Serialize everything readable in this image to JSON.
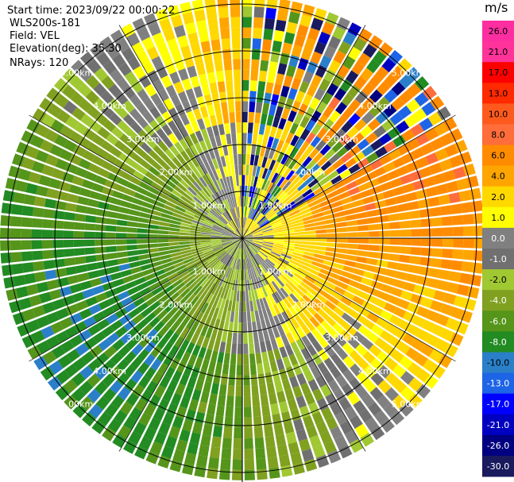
{
  "header": {
    "start_time": "Start time: 2023/09/22 00:00:22",
    "site": "WLS200s-181",
    "field": "Field: VEL",
    "elevation": "Elevation(deg): 35.30",
    "nrays": "NRays: 120"
  },
  "colorbar": {
    "unit": "m/s",
    "ticks": [
      "26.0",
      "21.0",
      "17.0",
      "13.0",
      "10.0",
      "8.0",
      "6.0",
      "4.0",
      "2.0",
      "1.0",
      "0.0",
      "-1.0",
      "-2.0",
      "-4.0",
      "-6.0",
      "-8.0",
      "-10.0",
      "-13.0",
      "-17.0",
      "-21.0",
      "-26.0",
      "-30.0"
    ],
    "colors": [
      "#fd2ea0",
      "#ff3399",
      "#ff0000",
      "#ff2a00",
      "#ff5a1e",
      "#ff6d3a",
      "#ff8c00",
      "#ffa500",
      "#ffd800",
      "#ffff00",
      "#808080",
      "#707070",
      "#a0c832",
      "#80a020",
      "#55951a",
      "#228b22",
      "#2a7fc8",
      "#1e64e6",
      "#0000ff",
      "#0000c0",
      "#000080",
      "#1a1a5e"
    ]
  },
  "chart_data": {
    "type": "heatmap",
    "projection": "polar-ppi",
    "range_rings_km": [
      1.0,
      2.0,
      3.0,
      4.0,
      5.0
    ],
    "range_ring_labels": [
      "1.00km",
      "2.00km",
      "3.00km",
      "4.00km",
      "5.00km"
    ],
    "n_rays": 120,
    "value_range": [
      -30.0,
      26.0
    ],
    "unit": "m/s",
    "field": "VEL"
  }
}
